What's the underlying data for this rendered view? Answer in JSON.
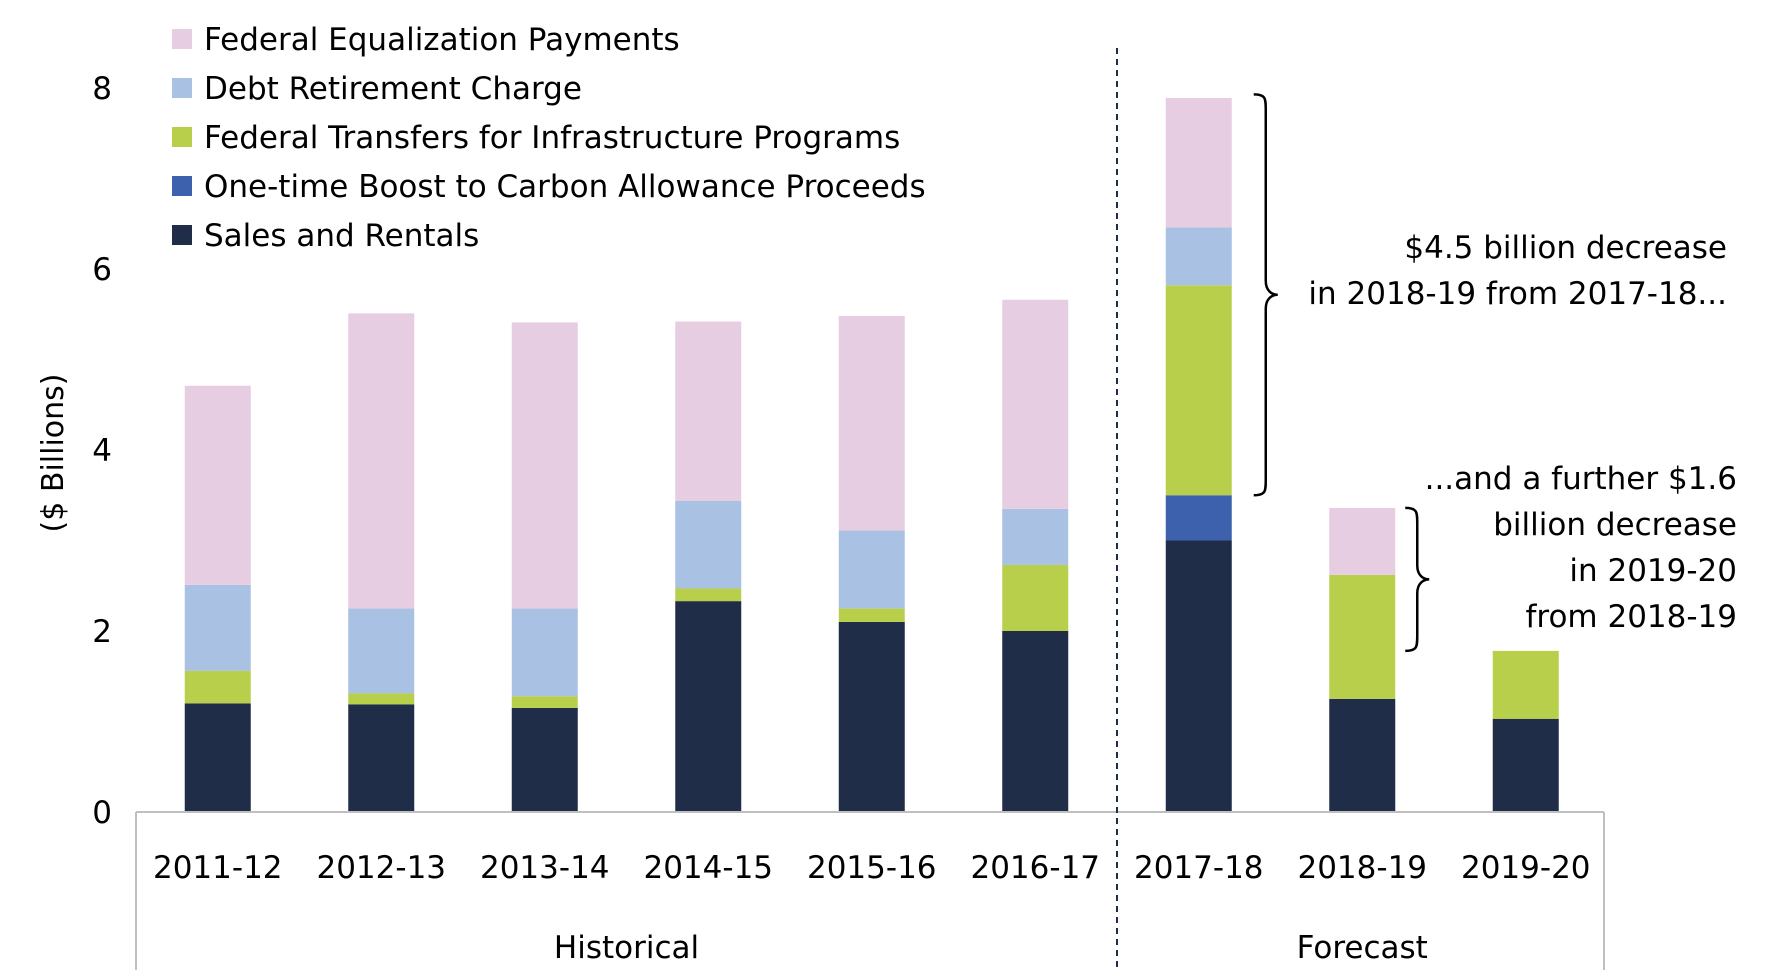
{
  "chart_data": {
    "type": "bar",
    "stacked": true,
    "title": "",
    "ylabel": "($ Billions)",
    "xlabel": "",
    "ylim": [
      0,
      8
    ],
    "yticks": [
      0,
      2,
      4,
      6,
      8
    ],
    "grid": false,
    "categories": [
      "2011-12",
      "2012-13",
      "2013-14",
      "2014-15",
      "2015-16",
      "2016-17",
      "2017-18",
      "2018-19",
      "2019-20"
    ],
    "groups": [
      {
        "label": "Historical",
        "categories": [
          "2011-12",
          "2012-13",
          "2013-14",
          "2014-15",
          "2015-16",
          "2016-17"
        ]
      },
      {
        "label": "Forecast",
        "categories": [
          "2017-18",
          "2018-19",
          "2019-20"
        ]
      }
    ],
    "legend_position": "top-left",
    "series": [
      {
        "name": "Sales and Rentals",
        "color": "#1f2d48",
        "values": [
          1.2,
          1.19,
          1.15,
          2.33,
          2.1,
          2.0,
          3.0,
          1.25,
          1.03
        ]
      },
      {
        "name": "One-time Boost to Carbon Allowance Proceeds",
        "color": "#3d61ac",
        "values": [
          0,
          0,
          0,
          0,
          0,
          0,
          0.5,
          0,
          0
        ]
      },
      {
        "name": "Federal Transfers for Infrastructure Programs",
        "color": "#b8cf4b",
        "values": [
          0.36,
          0.12,
          0.13,
          0.14,
          0.15,
          0.73,
          2.32,
          1.37,
          0.75
        ]
      },
      {
        "name": "Debt Retirement Charge",
        "color": "#a9c1e2",
        "values": [
          0.95,
          0.94,
          0.97,
          0.97,
          0.86,
          0.62,
          0.64,
          0,
          0
        ]
      },
      {
        "name": "Federal Equalization Payments",
        "color": "#e7cde1",
        "values": [
          2.2,
          3.26,
          3.16,
          1.98,
          2.37,
          2.31,
          1.43,
          0.74,
          0
        ]
      }
    ],
    "legend": [
      "Federal Equalization Payments",
      "Debt Retirement Charge",
      "Federal Transfers for Infrastructure Programs",
      "One-time Boost to Carbon Allowance Proceeds",
      "Sales and Rentals"
    ],
    "annotations": [
      {
        "lines": [
          "$4.5 billion decrease",
          "in 2018-19 from 2017-18..."
        ],
        "brace_from": 3.5,
        "brace_to": 7.93,
        "category": "2017-18"
      },
      {
        "lines": [
          "...and a further $1.6",
          "billion decrease",
          "in 2019-20",
          "from 2018-19"
        ],
        "brace_from": 1.78,
        "brace_to": 3.36,
        "category": "2018-19"
      }
    ]
  }
}
